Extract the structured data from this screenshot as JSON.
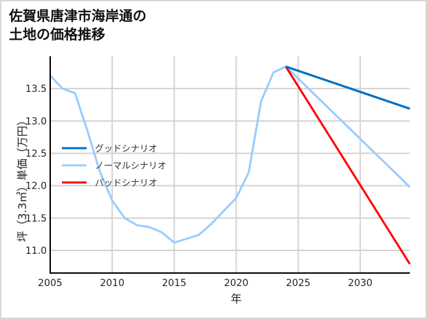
{
  "title": {
    "line1": "佐賀県唐津市海岸通の",
    "line2": "土地の価格推移"
  },
  "chart_data": {
    "type": "line",
    "title": "佐賀県唐津市海岸通の土地の価格推移",
    "xlabel": "年",
    "ylabel": "坪（3.3㎡）単価（万円）",
    "xlim": [
      2005,
      2034
    ],
    "ylim": [
      10.65,
      14.0
    ],
    "xticks": [
      2005,
      2010,
      2015,
      2020,
      2025,
      2030
    ],
    "yticks": [
      11.0,
      11.5,
      12.0,
      12.5,
      13.0,
      13.5
    ],
    "ytick_labels": [
      "11.0",
      "11.5",
      "12.0",
      "12.5",
      "13.0",
      "13.5"
    ],
    "grid": true,
    "legend_position": "left-center",
    "series": [
      {
        "name": "グッドシナリオ",
        "color": "#0070c0",
        "x": [
          2024,
          2034
        ],
        "y": [
          13.84,
          13.19
        ]
      },
      {
        "name": "ノーマルシナリオ",
        "color": "#99ccff",
        "x": [
          2005,
          2006,
          2007,
          2008,
          2009,
          2010,
          2011,
          2012,
          2013,
          2014,
          2015,
          2016,
          2017,
          2018,
          2019,
          2020,
          2021,
          2022,
          2023,
          2024,
          2034
        ],
        "y": [
          13.7,
          13.5,
          13.43,
          12.85,
          12.22,
          11.77,
          11.5,
          11.39,
          11.36,
          11.28,
          11.12,
          11.18,
          11.24,
          11.41,
          11.61,
          11.81,
          12.2,
          13.3,
          13.75,
          13.84,
          11.98
        ]
      },
      {
        "name": "バッドシナリオ",
        "color": "#ff0000",
        "x": [
          2024,
          2034
        ],
        "y": [
          13.84,
          10.79
        ]
      }
    ]
  }
}
